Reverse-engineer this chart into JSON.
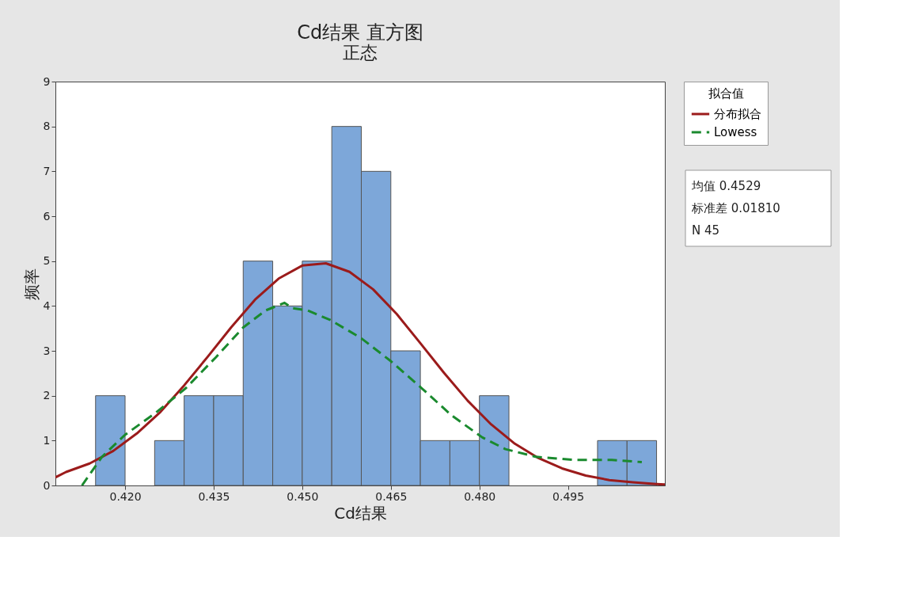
{
  "chart_data": {
    "type": "histogram",
    "title": "Cd结果 直方图",
    "subtitle": "正态",
    "xlabel": "Cd结果",
    "ylabel": "频率",
    "legend_title": "拟合值",
    "bins": [
      0.415,
      0.42,
      0.425,
      0.43,
      0.435,
      0.44,
      0.445,
      0.45,
      0.455,
      0.46,
      0.465,
      0.47,
      0.475,
      0.48,
      0.485,
      0.49,
      0.495,
      0.5,
      0.505,
      0.51
    ],
    "values": [
      2,
      0,
      1,
      2,
      2,
      5,
      4,
      5,
      8,
      7,
      3,
      1,
      1,
      2,
      0,
      0,
      0,
      1,
      1
    ],
    "color": "#7da7d9",
    "series": [
      {
        "type": "line",
        "name": "分布拟合",
        "color": "#9b1b1b",
        "line_style": "solid",
        "x": [
          0.4082,
          0.41,
          0.414,
          0.418,
          0.422,
          0.426,
          0.43,
          0.434,
          0.438,
          0.442,
          0.446,
          0.45,
          0.454,
          0.458,
          0.462,
          0.466,
          0.47,
          0.474,
          0.478,
          0.482,
          0.486,
          0.49,
          0.494,
          0.498,
          0.502,
          0.506,
          0.51,
          0.5114
        ],
        "values": [
          0.18,
          0.3,
          0.49,
          0.77,
          1.16,
          1.64,
          2.23,
          2.87,
          3.53,
          4.14,
          4.61,
          4.9,
          4.95,
          4.76,
          4.37,
          3.82,
          3.17,
          2.51,
          1.89,
          1.36,
          0.93,
          0.61,
          0.38,
          0.22,
          0.12,
          0.07,
          0.03,
          0.02
        ]
      },
      {
        "type": "line",
        "name": "Lowess",
        "color": "#1a8a2e",
        "line_style": "dashed",
        "x": [
          0.4127,
          0.4161,
          0.42,
          0.4251,
          0.4303,
          0.4354,
          0.44,
          0.4438,
          0.447,
          0.4483,
          0.4509,
          0.4547,
          0.4599,
          0.465,
          0.4702,
          0.4753,
          0.4805,
          0.4844,
          0.4895,
          0.4959,
          0.5024,
          0.5075
        ],
        "values": [
          0,
          0.64,
          1.13,
          1.61,
          2.17,
          2.86,
          3.52,
          3.9,
          4.07,
          3.95,
          3.9,
          3.69,
          3.29,
          2.77,
          2.17,
          1.56,
          1.07,
          0.81,
          0.64,
          0.57,
          0.57,
          0.52
        ]
      }
    ],
    "xlim": [
      0.4082,
      0.5114
    ],
    "ylim": [
      0,
      9
    ],
    "xticks": [
      {
        "value": 0.42,
        "label": "0.420"
      },
      {
        "value": 0.435,
        "label": "0.435"
      },
      {
        "value": 0.45,
        "label": "0.450"
      },
      {
        "value": 0.465,
        "label": "0.465"
      },
      {
        "value": 0.48,
        "label": "0.480"
      },
      {
        "value": 0.495,
        "label": "0.495"
      }
    ],
    "yticks": [
      0,
      1,
      2,
      3,
      4,
      5,
      6,
      7,
      8,
      9
    ],
    "grid": false,
    "legend": "top right",
    "annotations": [
      "均值 0.4529",
      "标准差 0.01810",
      "N 45"
    ]
  }
}
